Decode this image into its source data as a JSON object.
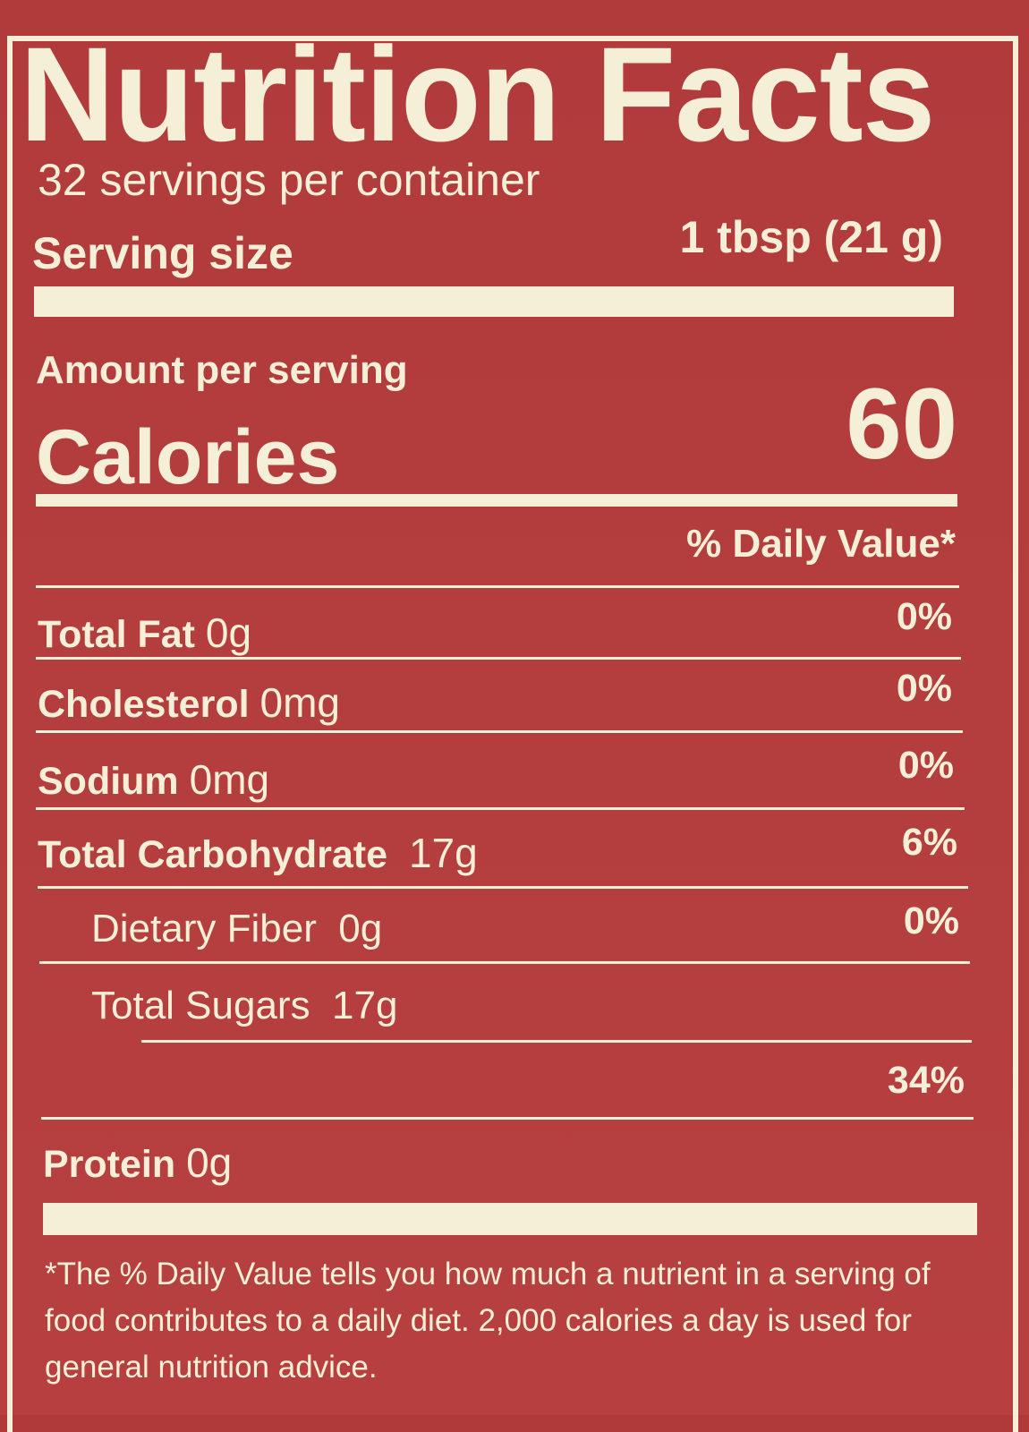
{
  "title": "Nutrition Facts",
  "servings_per_container": "32 servings per container",
  "serving_size": {
    "label": "Serving size",
    "value": "1 tbsp (21 g)"
  },
  "amount_per_serving": "Amount per serving",
  "calories": {
    "label": "Calories",
    "value": "60"
  },
  "daily_value_heading": "% Daily Value*",
  "nutrients": [
    {
      "name": "Total Fat",
      "amount": "0g",
      "dv": "0%"
    },
    {
      "name": "Cholesterol",
      "amount": "0mg",
      "dv": "0%"
    },
    {
      "name": "Sodium",
      "amount": "0mg",
      "dv": "0%"
    },
    {
      "name": "Total Carbohydrate",
      "amount": "17g",
      "dv": "6%"
    },
    {
      "name": "Dietary Fiber",
      "amount": "0g",
      "dv": "0%"
    },
    {
      "name": "Total Sugars",
      "amount": "17g",
      "dv": ""
    },
    {
      "name": "",
      "amount": "",
      "dv": "34%"
    },
    {
      "name": "Protein",
      "amount": "0g",
      "dv": ""
    }
  ],
  "footnote": "*The % Daily Value tells you how much a nutrient in a serving of food contributes to a daily diet. 2,000 calories a day is used for general nutrition advice.",
  "colors": {
    "background": "#b13a3b",
    "ink": "#f4efd6"
  }
}
